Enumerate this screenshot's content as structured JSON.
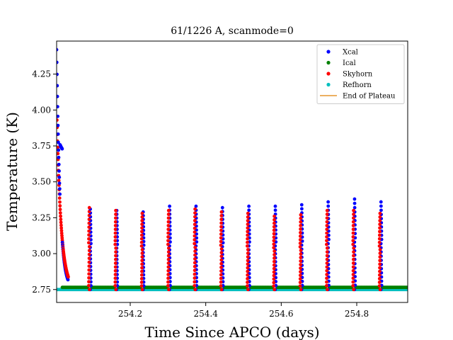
{
  "chart_data": {
    "type": "scatter",
    "title": "61/1226 A, scanmode=0",
    "xlabel": "Time Since APCO (days)",
    "ylabel": "Temperature (K)",
    "xlim": [
      254.005,
      254.935
    ],
    "ylim": [
      2.66,
      4.48
    ],
    "xticks": [
      254.2,
      254.4,
      254.6,
      254.8
    ],
    "xtick_labels": [
      "254.2",
      "254.4",
      "254.6",
      "254.8"
    ],
    "yticks": [
      2.75,
      3.0,
      3.25,
      3.5,
      3.75,
      4.0,
      4.25
    ],
    "ytick_labels": [
      "2.75",
      "3.00",
      "3.25",
      "3.50",
      "3.75",
      "4.00",
      "4.25"
    ],
    "legend_position": "upper right",
    "series": [
      {
        "name": "Xcal",
        "color": "#0000ff",
        "marker": "dot"
      },
      {
        "name": "Ical",
        "color": "#008000",
        "marker": "dot"
      },
      {
        "name": "Skyhorn",
        "color": "#ff0000",
        "marker": "dot"
      },
      {
        "name": "Refhorn",
        "color": "#00bfbf",
        "marker": "dot"
      },
      {
        "name": "End of Plateau",
        "color": "#e6962e",
        "marker": "line"
      }
    ],
    "baseline_level": 2.75,
    "ical_level": 2.765,
    "initial_decay": {
      "start_x": 254.005,
      "end_x": 254.035,
      "xcal_start": 4.42,
      "skyhorn_start": 3.93,
      "plateau_blips": {
        "xcal": 3.8,
        "skyhorn": 3.62
      }
    },
    "spikes": [
      {
        "x": 254.093,
        "xcal_peak": 3.31,
        "skyhorn_peak": 3.32
      },
      {
        "x": 254.163,
        "xcal_peak": 3.3,
        "skyhorn_peak": 3.3
      },
      {
        "x": 254.233,
        "xcal_peak": 3.29,
        "skyhorn_peak": 3.28
      },
      {
        "x": 254.303,
        "xcal_peak": 3.33,
        "skyhorn_peak": 3.3
      },
      {
        "x": 254.373,
        "xcal_peak": 3.33,
        "skyhorn_peak": 3.31
      },
      {
        "x": 254.443,
        "xcal_peak": 3.32,
        "skyhorn_peak": 3.29
      },
      {
        "x": 254.513,
        "xcal_peak": 3.33,
        "skyhorn_peak": 3.28
      },
      {
        "x": 254.583,
        "xcal_peak": 3.33,
        "skyhorn_peak": 3.26
      },
      {
        "x": 254.653,
        "xcal_peak": 3.34,
        "skyhorn_peak": 3.27
      },
      {
        "x": 254.723,
        "xcal_peak": 3.36,
        "skyhorn_peak": 3.3
      },
      {
        "x": 254.793,
        "xcal_peak": 3.38,
        "skyhorn_peak": 3.3
      },
      {
        "x": 254.863,
        "xcal_peak": 3.36,
        "skyhorn_peak": 3.28
      }
    ]
  }
}
